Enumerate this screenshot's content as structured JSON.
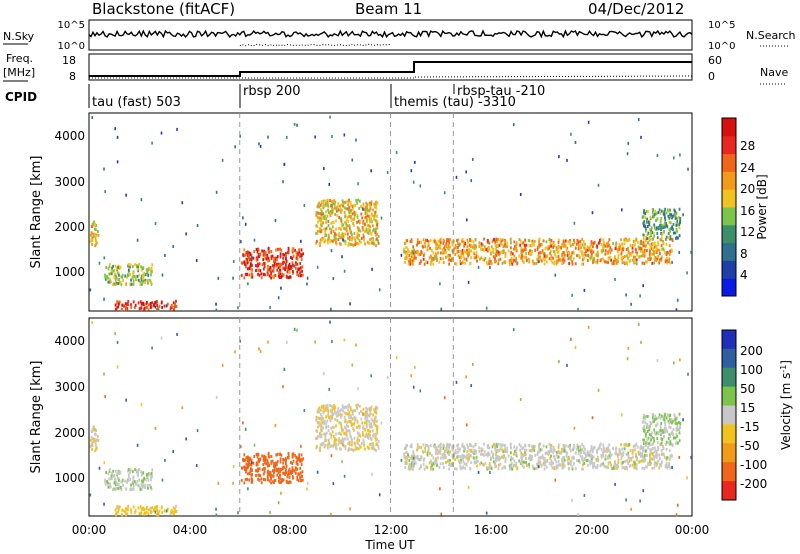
{
  "header": {
    "radar": "Blackstone (fitACF)",
    "beam": "Beam 11",
    "date": "04/Dec/2012"
  },
  "summary_panels": {
    "nsky": {
      "label": "N.Sky",
      "ticks": [
        "10^5",
        "10^0"
      ],
      "right_label": "N.Search",
      "right_ticks": [
        "10^5",
        "10^0"
      ]
    },
    "freq": {
      "label_line1": "Freq.",
      "label_line2": "[MHz]",
      "ticks": [
        "18",
        "8"
      ],
      "right_label": "Nave",
      "right_ticks": [
        "60",
        "0"
      ]
    },
    "cpid": {
      "label": "CPID",
      "segments": [
        {
          "start_h": 0.0,
          "label": "tau (fast) 503"
        },
        {
          "start_h": 6.0,
          "label": "rbsp 200"
        },
        {
          "start_h": 12.0,
          "label": "themis (tau) -3310"
        },
        {
          "start_h": 14.5,
          "label": "rbsp-tau -210"
        }
      ]
    }
  },
  "axes": {
    "ylabel": "Slant Range [km]",
    "yticks": [
      "1000",
      "2000",
      "3000",
      "4000"
    ],
    "xlabel": "Time UT",
    "xticks": [
      "00:00",
      "04:00",
      "08:00",
      "12:00",
      "16:00",
      "20:00",
      "00:00"
    ]
  },
  "colorbars": {
    "power": {
      "label": "Power [dB]",
      "ticks": [
        "4",
        "8",
        "12",
        "16",
        "20",
        "24",
        "28"
      ],
      "colors": [
        "#0a1ae6",
        "#1f3fa8",
        "#2f6f8f",
        "#3c8f6a",
        "#7cc54a",
        "#f2c21e",
        "#f29a1a",
        "#f0661a",
        "#e8281e",
        "#d80f0f"
      ]
    },
    "velocity": {
      "label": "Velocity [m s",
      "label_sup": "-1",
      "label_end": "]",
      "ticks": [
        "200",
        "100",
        "50",
        "15",
        "-15",
        "-50",
        "-100",
        "-200"
      ],
      "colors": [
        "#1f2fb8",
        "#2f5fa0",
        "#3c8f6a",
        "#7cc54a",
        "#c8c8c8",
        "#f2c21e",
        "#f29a1a",
        "#f0661a",
        "#e8281e"
      ]
    }
  },
  "chart_data": {
    "type": "heatmap",
    "x_range_hours": [
      0,
      24
    ],
    "y_range_km": [
      180,
      4500
    ],
    "cpid_change_hours": [
      6.0,
      12.0,
      14.5
    ],
    "echo_regions": [
      {
        "t0": 0.0,
        "t1": 0.35,
        "r0": 1550,
        "r1": 2150,
        "power_db": 18,
        "velocity": -10
      },
      {
        "t0": 0.6,
        "t1": 2.5,
        "r0": 750,
        "r1": 1200,
        "power_db": 14,
        "velocity": 5
      },
      {
        "t0": 1.0,
        "t1": 3.5,
        "r0": 200,
        "r1": 400,
        "power_db": 26,
        "velocity": -30
      },
      {
        "t0": 6.0,
        "t1": 8.5,
        "r0": 900,
        "r1": 1550,
        "power_db": 26,
        "velocity": -150
      },
      {
        "t0": 9.0,
        "t1": 11.5,
        "r0": 1600,
        "r1": 2600,
        "power_db": 18,
        "velocity": -10
      },
      {
        "t0": 12.5,
        "t1": 23.2,
        "r0": 1200,
        "r1": 1750,
        "power_db": 20,
        "velocity": 0
      },
      {
        "t0": 22.0,
        "t1": 23.5,
        "r0": 1750,
        "r1": 2400,
        "power_db": 12,
        "velocity": 15
      }
    ]
  }
}
